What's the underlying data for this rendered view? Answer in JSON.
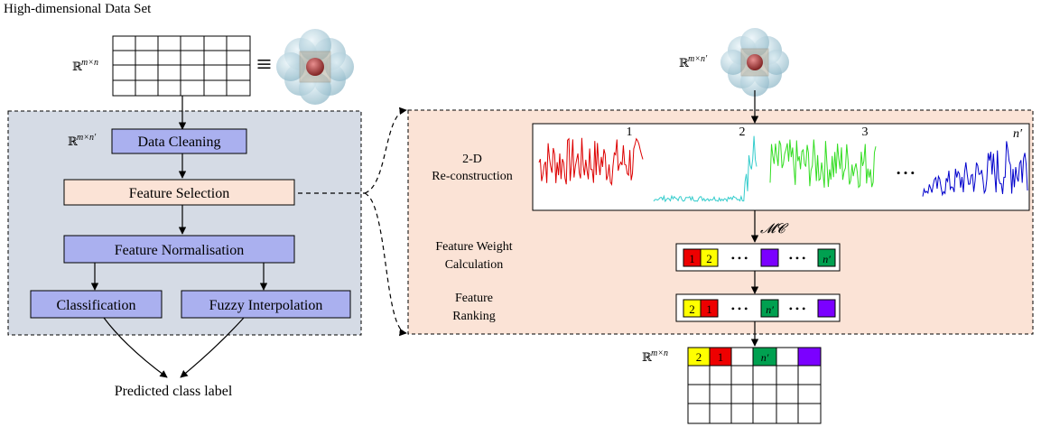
{
  "dataset_title": "High-dimensional Data Set",
  "math": {
    "real_mn": "ℝ",
    "real_mn_sup": "m×n",
    "real_mnp_sup": "m×n′",
    "equiv": "≡",
    "mc": "𝓜𝓒"
  },
  "left_panel": {
    "data_cleaning": "Data Cleaning",
    "feature_selection": "Feature Selection",
    "feature_normalisation": "Feature Normalisation",
    "classification": "Classification",
    "fuzzy_interpolation": "Fuzzy Interpolation",
    "predicted_label": "Predicted class label"
  },
  "right_panel": {
    "recon_label_1": "2-D",
    "recon_label_2": "Re-construction",
    "weight_label_1": "Feature Weight",
    "weight_label_2": "Calculation",
    "ranking_label_1": "Feature",
    "ranking_label_2": "Ranking",
    "signal_indices": [
      "1",
      "2",
      "3",
      "n′"
    ],
    "weight_cells": [
      "1",
      "2",
      "n′"
    ],
    "ranking_cells": [
      "2",
      "1",
      "n′"
    ],
    "output_cells": [
      "2",
      "1",
      "n′"
    ],
    "ellipsis": "• • •"
  },
  "colors": {
    "left_panel_bg": "#d5dbe5",
    "right_panel_bg": "#fbe3d6",
    "block_purple": "#aab0ef",
    "block_peach": "#fbe3d6",
    "cell_red": "#ee0000",
    "cell_yellow": "#ffff00",
    "cell_purple": "#7b00ff",
    "cell_green": "#00a050",
    "sig_red": "#dd0000",
    "sig_cyan": "#33cccc",
    "sig_green": "#33dd22",
    "sig_blue": "#0000cc"
  }
}
